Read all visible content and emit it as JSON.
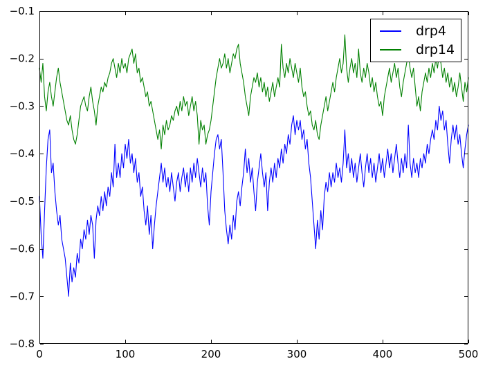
{
  "figure": {
    "background": "#ffffff",
    "frame_color": "#000000"
  },
  "chart_data": {
    "type": "line",
    "title": "",
    "xlabel": "",
    "ylabel": "",
    "grid": false,
    "legend_position": "upper right",
    "xlim": [
      0,
      500
    ],
    "ylim": [
      -0.8,
      -0.1
    ],
    "xticks": [
      0,
      100,
      200,
      300,
      400,
      500
    ],
    "xtick_labels": [
      "0",
      "100",
      "200",
      "300",
      "400",
      "500"
    ],
    "yticks": [
      -0.1,
      -0.2,
      -0.3,
      -0.4,
      -0.5,
      -0.6,
      -0.7,
      -0.8
    ],
    "ytick_labels": [
      "−0.1",
      "−0.2",
      "−0.3",
      "−0.4",
      "−0.5",
      "−0.6",
      "−0.7",
      "−0.8"
    ],
    "x": [
      0,
      2,
      4,
      6,
      8,
      10,
      12,
      14,
      16,
      18,
      20,
      22,
      24,
      26,
      28,
      30,
      32,
      34,
      36,
      38,
      40,
      42,
      44,
      46,
      48,
      50,
      52,
      54,
      56,
      58,
      60,
      62,
      64,
      66,
      68,
      70,
      72,
      74,
      76,
      78,
      80,
      82,
      84,
      86,
      88,
      90,
      92,
      94,
      96,
      98,
      100,
      102,
      104,
      106,
      108,
      110,
      112,
      114,
      116,
      118,
      120,
      122,
      124,
      126,
      128,
      130,
      132,
      134,
      136,
      138,
      140,
      142,
      144,
      146,
      148,
      150,
      152,
      154,
      156,
      158,
      160,
      162,
      164,
      166,
      168,
      170,
      172,
      174,
      176,
      178,
      180,
      182,
      184,
      186,
      188,
      190,
      192,
      194,
      196,
      198,
      200,
      202,
      204,
      206,
      208,
      210,
      212,
      214,
      216,
      218,
      220,
      222,
      224,
      226,
      228,
      230,
      232,
      234,
      236,
      238,
      240,
      242,
      244,
      246,
      248,
      250,
      252,
      254,
      256,
      258,
      260,
      262,
      264,
      266,
      268,
      270,
      272,
      274,
      276,
      278,
      280,
      282,
      284,
      286,
      288,
      290,
      292,
      294,
      296,
      298,
      300,
      302,
      304,
      306,
      308,
      310,
      312,
      314,
      316,
      318,
      320,
      322,
      324,
      326,
      328,
      330,
      332,
      334,
      336,
      338,
      340,
      342,
      344,
      346,
      348,
      350,
      352,
      354,
      356,
      358,
      360,
      362,
      364,
      366,
      368,
      370,
      372,
      374,
      376,
      378,
      380,
      382,
      384,
      386,
      388,
      390,
      392,
      394,
      396,
      398,
      400,
      402,
      404,
      406,
      408,
      410,
      412,
      414,
      416,
      418,
      420,
      422,
      424,
      426,
      428,
      430,
      432,
      434,
      436,
      438,
      440,
      442,
      444,
      446,
      448,
      450,
      452,
      454,
      456,
      458,
      460,
      462,
      464,
      466,
      468,
      470,
      472,
      474,
      476,
      478,
      480,
      482,
      484,
      486,
      488,
      490,
      492,
      494,
      496,
      498,
      500
    ],
    "series": [
      {
        "name": "drp4",
        "color": "#0000ff",
        "values": [
          -0.49,
          -0.57,
          -0.62,
          -0.52,
          -0.43,
          -0.37,
          -0.35,
          -0.44,
          -0.42,
          -0.48,
          -0.52,
          -0.55,
          -0.53,
          -0.58,
          -0.6,
          -0.62,
          -0.66,
          -0.7,
          -0.63,
          -0.67,
          -0.64,
          -0.66,
          -0.61,
          -0.63,
          -0.58,
          -0.6,
          -0.56,
          -0.58,
          -0.54,
          -0.57,
          -0.53,
          -0.55,
          -0.62,
          -0.54,
          -0.51,
          -0.53,
          -0.49,
          -0.52,
          -0.48,
          -0.51,
          -0.47,
          -0.49,
          -0.44,
          -0.47,
          -0.38,
          -0.45,
          -0.42,
          -0.45,
          -0.4,
          -0.43,
          -0.38,
          -0.41,
          -0.37,
          -0.42,
          -0.4,
          -0.44,
          -0.41,
          -0.46,
          -0.44,
          -0.49,
          -0.47,
          -0.52,
          -0.55,
          -0.51,
          -0.57,
          -0.53,
          -0.6,
          -0.55,
          -0.51,
          -0.48,
          -0.45,
          -0.42,
          -0.46,
          -0.43,
          -0.47,
          -0.45,
          -0.48,
          -0.44,
          -0.47,
          -0.5,
          -0.46,
          -0.44,
          -0.48,
          -0.45,
          -0.43,
          -0.47,
          -0.44,
          -0.48,
          -0.43,
          -0.46,
          -0.42,
          -0.45,
          -0.41,
          -0.44,
          -0.47,
          -0.43,
          -0.46,
          -0.44,
          -0.51,
          -0.55,
          -0.48,
          -0.44,
          -0.4,
          -0.37,
          -0.36,
          -0.39,
          -0.37,
          -0.44,
          -0.52,
          -0.56,
          -0.59,
          -0.55,
          -0.58,
          -0.53,
          -0.56,
          -0.5,
          -0.48,
          -0.51,
          -0.47,
          -0.44,
          -0.39,
          -0.44,
          -0.41,
          -0.46,
          -0.43,
          -0.48,
          -0.52,
          -0.46,
          -0.43,
          -0.4,
          -0.44,
          -0.47,
          -0.44,
          -0.52,
          -0.46,
          -0.43,
          -0.46,
          -0.42,
          -0.45,
          -0.41,
          -0.43,
          -0.39,
          -0.42,
          -0.38,
          -0.4,
          -0.36,
          -0.38,
          -0.34,
          -0.32,
          -0.36,
          -0.33,
          -0.35,
          -0.33,
          -0.37,
          -0.35,
          -0.39,
          -0.37,
          -0.42,
          -0.45,
          -0.5,
          -0.55,
          -0.6,
          -0.54,
          -0.58,
          -0.52,
          -0.56,
          -0.49,
          -0.46,
          -0.48,
          -0.44,
          -0.47,
          -0.44,
          -0.46,
          -0.42,
          -0.45,
          -0.43,
          -0.46,
          -0.42,
          -0.35,
          -0.43,
          -0.4,
          -0.44,
          -0.41,
          -0.45,
          -0.42,
          -0.46,
          -0.43,
          -0.4,
          -0.44,
          -0.47,
          -0.43,
          -0.4,
          -0.44,
          -0.41,
          -0.45,
          -0.42,
          -0.46,
          -0.43,
          -0.4,
          -0.44,
          -0.41,
          -0.45,
          -0.42,
          -0.39,
          -0.43,
          -0.4,
          -0.44,
          -0.41,
          -0.38,
          -0.42,
          -0.45,
          -0.41,
          -0.44,
          -0.4,
          -0.43,
          -0.34,
          -0.42,
          -0.45,
          -0.41,
          -0.44,
          -0.42,
          -0.45,
          -0.41,
          -0.43,
          -0.4,
          -0.42,
          -0.38,
          -0.4,
          -0.37,
          -0.35,
          -0.37,
          -0.33,
          -0.35,
          -0.3,
          -0.33,
          -0.31,
          -0.35,
          -0.33,
          -0.38,
          -0.42,
          -0.37,
          -0.34,
          -0.37,
          -0.34,
          -0.38,
          -0.36,
          -0.4,
          -0.43,
          -0.39,
          -0.36,
          -0.34
        ]
      },
      {
        "name": "drp14",
        "color": "#008000",
        "values": [
          -0.22,
          -0.25,
          -0.21,
          -0.28,
          -0.31,
          -0.27,
          -0.25,
          -0.28,
          -0.3,
          -0.27,
          -0.24,
          -0.22,
          -0.25,
          -0.27,
          -0.29,
          -0.31,
          -0.33,
          -0.34,
          -0.32,
          -0.35,
          -0.37,
          -0.38,
          -0.36,
          -0.33,
          -0.3,
          -0.29,
          -0.28,
          -0.3,
          -0.31,
          -0.28,
          -0.26,
          -0.29,
          -0.31,
          -0.34,
          -0.3,
          -0.28,
          -0.26,
          -0.27,
          -0.25,
          -0.26,
          -0.24,
          -0.23,
          -0.21,
          -0.2,
          -0.22,
          -0.24,
          -0.21,
          -0.23,
          -0.2,
          -0.22,
          -0.21,
          -0.23,
          -0.2,
          -0.19,
          -0.18,
          -0.21,
          -0.19,
          -0.23,
          -0.22,
          -0.25,
          -0.24,
          -0.26,
          -0.28,
          -0.27,
          -0.3,
          -0.29,
          -0.31,
          -0.33,
          -0.35,
          -0.37,
          -0.35,
          -0.39,
          -0.34,
          -0.36,
          -0.33,
          -0.35,
          -0.34,
          -0.32,
          -0.33,
          -0.31,
          -0.3,
          -0.32,
          -0.29,
          -0.31,
          -0.28,
          -0.3,
          -0.29,
          -0.32,
          -0.3,
          -0.28,
          -0.31,
          -0.29,
          -0.32,
          -0.38,
          -0.33,
          -0.35,
          -0.34,
          -0.38,
          -0.36,
          -0.35,
          -0.33,
          -0.3,
          -0.27,
          -0.24,
          -0.22,
          -0.2,
          -0.22,
          -0.21,
          -0.19,
          -0.22,
          -0.2,
          -0.23,
          -0.21,
          -0.19,
          -0.2,
          -0.18,
          -0.17,
          -0.21,
          -0.23,
          -0.25,
          -0.28,
          -0.3,
          -0.32,
          -0.28,
          -0.26,
          -0.24,
          -0.25,
          -0.23,
          -0.26,
          -0.24,
          -0.27,
          -0.25,
          -0.28,
          -0.26,
          -0.29,
          -0.27,
          -0.25,
          -0.28,
          -0.26,
          -0.24,
          -0.26,
          -0.17,
          -0.22,
          -0.24,
          -0.21,
          -0.23,
          -0.2,
          -0.22,
          -0.24,
          -0.21,
          -0.23,
          -0.25,
          -0.22,
          -0.26,
          -0.28,
          -0.27,
          -0.3,
          -0.32,
          -0.31,
          -0.34,
          -0.35,
          -0.33,
          -0.36,
          -0.37,
          -0.34,
          -0.32,
          -0.3,
          -0.28,
          -0.31,
          -0.29,
          -0.27,
          -0.25,
          -0.27,
          -0.24,
          -0.22,
          -0.2,
          -0.23,
          -0.21,
          -0.15,
          -0.22,
          -0.25,
          -0.22,
          -0.2,
          -0.23,
          -0.21,
          -0.24,
          -0.18,
          -0.23,
          -0.25,
          -0.22,
          -0.24,
          -0.21,
          -0.23,
          -0.26,
          -0.24,
          -0.27,
          -0.25,
          -0.28,
          -0.3,
          -0.29,
          -0.32,
          -0.28,
          -0.26,
          -0.24,
          -0.22,
          -0.25,
          -0.23,
          -0.21,
          -0.24,
          -0.22,
          -0.26,
          -0.28,
          -0.25,
          -0.23,
          -0.21,
          -0.19,
          -0.22,
          -0.24,
          -0.22,
          -0.26,
          -0.3,
          -0.28,
          -0.31,
          -0.27,
          -0.25,
          -0.23,
          -0.25,
          -0.22,
          -0.24,
          -0.21,
          -0.23,
          -0.2,
          -0.22,
          -0.19,
          -0.21,
          -0.24,
          -0.22,
          -0.25,
          -0.23,
          -0.26,
          -0.24,
          -0.27,
          -0.25,
          -0.28,
          -0.26,
          -0.23,
          -0.26,
          -0.29,
          -0.25,
          -0.27,
          -0.24
        ]
      }
    ],
    "legend": {
      "entries": [
        {
          "label": "drp4",
          "color": "#0000ff"
        },
        {
          "label": "drp14",
          "color": "#008000"
        }
      ]
    }
  }
}
